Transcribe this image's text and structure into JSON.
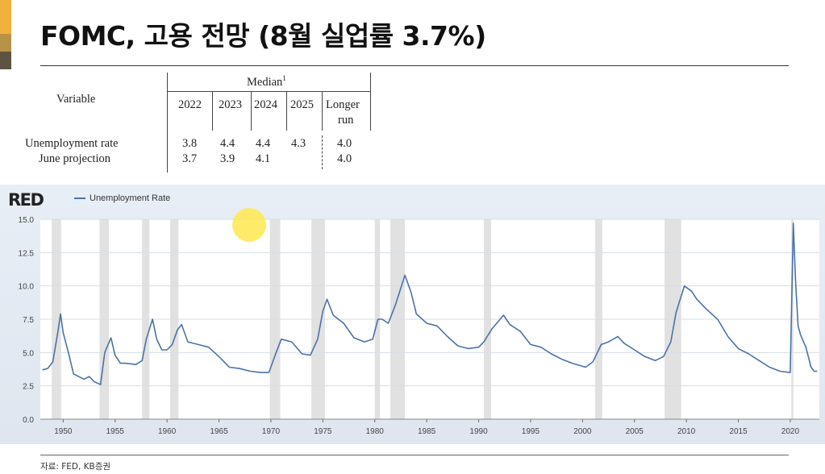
{
  "slide": {
    "title": "FOMC, 고용 전망 (8월 실업률 3.7%)",
    "source": "자료: FED, KB증권",
    "accent_colors": [
      "#f2b13c",
      "#b9924a",
      "#5b5443"
    ]
  },
  "projection_table": {
    "header_variable": "Variable",
    "header_median": "Median",
    "header_median_sup": "1",
    "years": [
      "2022",
      "2023",
      "2024",
      "2025"
    ],
    "longer_run_line1": "Longer",
    "longer_run_line2": "run",
    "rows": [
      {
        "label": "Unemployment rate",
        "values": [
          "3.8",
          "4.4",
          "4.4",
          "4.3"
        ],
        "longer_run": "4.0"
      },
      {
        "label": "June projection",
        "values": [
          "3.7",
          "3.9",
          "4.1",
          ""
        ],
        "longer_run": "4.0"
      }
    ]
  },
  "chart_data": {
    "type": "line",
    "logo_text": "RED",
    "series": [
      {
        "name": "Unemployment Rate",
        "color": "#4a72a8",
        "points": [
          [
            1948.0,
            3.7
          ],
          [
            1948.5,
            3.8
          ],
          [
            1949.0,
            4.3
          ],
          [
            1949.5,
            6.6
          ],
          [
            1949.75,
            7.9
          ],
          [
            1950.0,
            6.5
          ],
          [
            1950.5,
            5.0
          ],
          [
            1951.0,
            3.4
          ],
          [
            1952.0,
            3.0
          ],
          [
            1952.5,
            3.2
          ],
          [
            1953.0,
            2.8
          ],
          [
            1953.6,
            2.6
          ],
          [
            1954.0,
            5.0
          ],
          [
            1954.6,
            6.1
          ],
          [
            1955.0,
            4.8
          ],
          [
            1955.5,
            4.2
          ],
          [
            1956.0,
            4.2
          ],
          [
            1957.0,
            4.1
          ],
          [
            1957.6,
            4.4
          ],
          [
            1958.0,
            6.0
          ],
          [
            1958.6,
            7.5
          ],
          [
            1959.0,
            6.0
          ],
          [
            1959.5,
            5.2
          ],
          [
            1960.0,
            5.2
          ],
          [
            1960.5,
            5.6
          ],
          [
            1961.0,
            6.7
          ],
          [
            1961.4,
            7.1
          ],
          [
            1962.0,
            5.8
          ],
          [
            1963.0,
            5.6
          ],
          [
            1964.0,
            5.4
          ],
          [
            1965.0,
            4.7
          ],
          [
            1966.0,
            3.9
          ],
          [
            1967.0,
            3.8
          ],
          [
            1968.0,
            3.6
          ],
          [
            1969.0,
            3.5
          ],
          [
            1969.8,
            3.5
          ],
          [
            1970.5,
            5.0
          ],
          [
            1971.0,
            6.0
          ],
          [
            1972.0,
            5.8
          ],
          [
            1973.0,
            4.9
          ],
          [
            1973.8,
            4.8
          ],
          [
            1974.5,
            6.0
          ],
          [
            1975.0,
            8.1
          ],
          [
            1975.4,
            9.0
          ],
          [
            1976.0,
            7.8
          ],
          [
            1977.0,
            7.2
          ],
          [
            1978.0,
            6.1
          ],
          [
            1979.0,
            5.8
          ],
          [
            1979.8,
            6.0
          ],
          [
            1980.3,
            7.5
          ],
          [
            1980.7,
            7.5
          ],
          [
            1981.3,
            7.2
          ],
          [
            1982.0,
            8.6
          ],
          [
            1982.9,
            10.8
          ],
          [
            1983.5,
            9.5
          ],
          [
            1984.0,
            7.9
          ],
          [
            1985.0,
            7.2
          ],
          [
            1986.0,
            7.0
          ],
          [
            1987.0,
            6.2
          ],
          [
            1988.0,
            5.5
          ],
          [
            1989.0,
            5.3
          ],
          [
            1990.0,
            5.4
          ],
          [
            1990.5,
            5.8
          ],
          [
            1991.3,
            6.8
          ],
          [
            1992.4,
            7.8
          ],
          [
            1993.0,
            7.1
          ],
          [
            1994.0,
            6.6
          ],
          [
            1995.0,
            5.6
          ],
          [
            1996.0,
            5.4
          ],
          [
            1997.0,
            4.9
          ],
          [
            1998.0,
            4.5
          ],
          [
            1999.0,
            4.2
          ],
          [
            2000.3,
            3.9
          ],
          [
            2001.0,
            4.3
          ],
          [
            2001.8,
            5.6
          ],
          [
            2002.5,
            5.8
          ],
          [
            2003.4,
            6.2
          ],
          [
            2004.0,
            5.7
          ],
          [
            2005.0,
            5.2
          ],
          [
            2006.0,
            4.7
          ],
          [
            2007.0,
            4.4
          ],
          [
            2007.8,
            4.7
          ],
          [
            2008.5,
            5.8
          ],
          [
            2009.0,
            8.0
          ],
          [
            2009.8,
            10.0
          ],
          [
            2010.5,
            9.6
          ],
          [
            2011.0,
            9.0
          ],
          [
            2012.0,
            8.2
          ],
          [
            2013.0,
            7.5
          ],
          [
            2014.0,
            6.2
          ],
          [
            2015.0,
            5.3
          ],
          [
            2016.0,
            4.9
          ],
          [
            2017.0,
            4.4
          ],
          [
            2018.0,
            3.9
          ],
          [
            2019.0,
            3.6
          ],
          [
            2020.0,
            3.5
          ],
          [
            2020.29,
            14.7
          ],
          [
            2020.5,
            10.5
          ],
          [
            2020.75,
            7.0
          ],
          [
            2021.0,
            6.3
          ],
          [
            2021.5,
            5.4
          ],
          [
            2022.0,
            3.9
          ],
          [
            2022.3,
            3.6
          ],
          [
            2022.6,
            3.6
          ]
        ]
      }
    ],
    "recessions": [
      [
        1948.9,
        1949.8
      ],
      [
        1953.5,
        1954.4
      ],
      [
        1957.6,
        1958.3
      ],
      [
        1960.3,
        1961.1
      ],
      [
        1969.9,
        1970.9
      ],
      [
        1973.9,
        1975.2
      ],
      [
        1980.0,
        1980.5
      ],
      [
        1981.5,
        1982.9
      ],
      [
        1990.5,
        1991.2
      ],
      [
        2001.2,
        2001.9
      ],
      [
        2007.9,
        2009.5
      ],
      [
        2020.1,
        2020.3
      ]
    ],
    "x_ticks": [
      1950,
      1955,
      1960,
      1965,
      1970,
      1975,
      1980,
      1985,
      1990,
      1995,
      2000,
      2005,
      2010,
      2015,
      2020
    ],
    "y_ticks": [
      "0.0",
      "2.5",
      "5.0",
      "7.5",
      "10.0",
      "12.5",
      "15.0"
    ],
    "xlim": [
      1947.8,
      2022.8
    ],
    "ylim": [
      0,
      15
    ],
    "grid": true,
    "legend": "top-left"
  }
}
